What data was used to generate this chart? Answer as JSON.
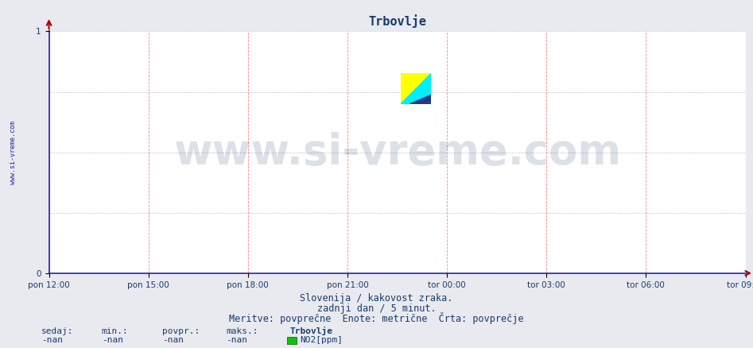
{
  "title": "Trbovlje",
  "title_color": "#1a3a6b",
  "title_fontsize": 11,
  "bg_color": "#e8eaf0",
  "plot_bg_color": "#ffffff",
  "grid_color_v": "#ff6666",
  "grid_color_h": "#aaaacc",
  "axis_color": "#2222aa",
  "x_tick_labels": [
    "pon 12:00",
    "pon 15:00",
    "pon 18:00",
    "pon 21:00",
    "tor 00:00",
    "tor 03:00",
    "tor 06:00",
    "tor 09:00"
  ],
  "x_tick_positions": [
    0.0,
    0.142857,
    0.285714,
    0.428571,
    0.571429,
    0.714286,
    0.857143,
    1.0
  ],
  "ylim": [
    0,
    1
  ],
  "yticks": [
    0,
    1
  ],
  "ylabel_left": "www.si-vreme.com",
  "subtitle_line1": "Slovenija / kakovost zraka.",
  "subtitle_line2": "zadnji dan / 5 minut.",
  "subtitle_line3": "Meritve: povprečne  Enote: metrične  Črta: povprečje",
  "subtitle_color": "#1a3a6b",
  "subtitle_fontsize": 8.5,
  "legend_color_box": "#00cc00",
  "legend_label": "NO2[ppm]",
  "footer_labels": [
    "sedaj:",
    "min.:",
    "povpr.:",
    "maks.:",
    "Trbovlje"
  ],
  "footer_values": [
    "-nan",
    "-nan",
    "-nan",
    "-nan"
  ],
  "footer_color": "#1a3a6b",
  "watermark_text": "www.si-vreme.com",
  "watermark_color": "#1a3a6b",
  "watermark_alpha": 0.15,
  "watermark_fontsize": 38,
  "tick_fontsize": 7.5,
  "tick_color": "#1a3a6b",
  "logo_yellow": "#ffff00",
  "logo_cyan": "#00eeff",
  "logo_blue": "#1a3a8b"
}
